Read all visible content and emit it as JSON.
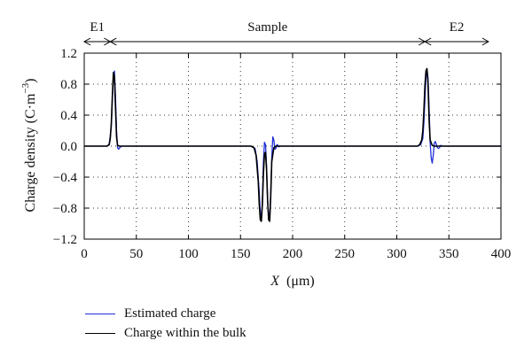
{
  "chart_data": {
    "type": "line",
    "xlabel_var": "X",
    "xlabel_unit": "(μm)",
    "ylabel_text": "Charge density (C·m",
    "ylabel_exp": "−3",
    "ylabel_close": ")",
    "xlim": [
      0,
      400
    ],
    "ylim": [
      -1.2,
      1.2
    ],
    "x_ticks": [
      0,
      50,
      100,
      150,
      200,
      250,
      300,
      350,
      400
    ],
    "x_tick_labels": [
      "0",
      "50",
      "100",
      "150",
      "200",
      "250",
      "300",
      "350",
      "400"
    ],
    "y_ticks": [
      1.2,
      0.8,
      0.4,
      0.0,
      -0.4,
      -0.8,
      -1.2
    ],
    "y_tick_labels": [
      "1.2",
      "0.8",
      "0.4",
      "0.0",
      "−0.4",
      "−0.8",
      "−1.2"
    ],
    "grid": true,
    "grid_style": "dotted",
    "regions": [
      {
        "label": "E1",
        "from": 0,
        "to": 25
      },
      {
        "label": "Sample",
        "from": 25,
        "to": 327
      },
      {
        "label": "E2",
        "from": 327,
        "to": 388
      }
    ],
    "series": [
      {
        "name": "Estimated charge",
        "color": "#1f2fd6",
        "x": [
          0,
          22,
          24,
          26,
          27,
          28,
          29,
          30,
          31,
          32,
          33,
          34,
          36,
          38,
          160,
          164,
          166,
          168,
          169,
          170,
          171,
          172,
          173,
          174,
          175,
          176,
          177,
          178,
          179,
          180,
          181,
          182,
          183,
          184,
          185,
          186,
          187,
          188,
          190,
          192,
          320,
          323,
          325,
          326,
          327,
          328,
          329,
          330,
          331,
          332,
          333,
          334,
          335,
          336,
          337,
          338,
          339,
          340,
          341,
          342,
          344,
          346,
          400
        ],
        "y": [
          0,
          0,
          0.03,
          0.25,
          0.6,
          0.92,
          0.97,
          0.65,
          0.2,
          -0.02,
          -0.04,
          -0.02,
          0,
          0,
          0,
          -0.03,
          -0.2,
          -0.6,
          -0.85,
          -0.95,
          -0.7,
          -0.2,
          0.05,
          0.02,
          -0.25,
          -0.7,
          -0.92,
          -0.92,
          -0.6,
          -0.15,
          0.12,
          0.08,
          -0.04,
          -0.03,
          0.02,
          0.01,
          -0.01,
          0,
          0,
          0,
          0,
          0.02,
          0.1,
          0.3,
          0.6,
          0.88,
          0.98,
          0.88,
          0.5,
          0.05,
          -0.15,
          -0.22,
          -0.12,
          0.04,
          0.06,
          0.02,
          -0.02,
          -0.03,
          -0.02,
          0.01,
          0,
          0,
          0
        ]
      },
      {
        "name": "Charge within the bulk",
        "color": "#000000",
        "x": [
          0,
          22,
          24,
          25,
          26,
          27,
          28,
          29,
          30,
          31,
          32,
          34,
          160,
          163,
          165,
          167,
          168,
          169,
          170,
          171,
          172,
          173,
          174,
          175,
          176,
          177,
          178,
          179,
          180,
          182,
          184,
          320,
          322,
          324,
          325,
          326,
          327,
          328,
          329,
          330,
          331,
          332,
          334,
          336,
          400
        ],
        "y": [
          0,
          0,
          0.02,
          0.1,
          0.3,
          0.65,
          0.95,
          0.9,
          0.5,
          0.12,
          0.01,
          0,
          0,
          -0.02,
          -0.12,
          -0.45,
          -0.75,
          -0.95,
          -0.97,
          -0.75,
          -0.35,
          -0.1,
          -0.08,
          -0.3,
          -0.7,
          -0.95,
          -0.97,
          -0.65,
          -0.2,
          -0.02,
          0,
          0,
          0.02,
          0.08,
          0.2,
          0.45,
          0.78,
          0.97,
          1.0,
          0.8,
          0.35,
          0.08,
          0.01,
          0,
          0
        ]
      }
    ]
  },
  "legend": {
    "items": [
      {
        "label": "Estimated charge",
        "color": "#1f2fd6"
      },
      {
        "label": "Charge within the bulk",
        "color": "#000000"
      }
    ]
  }
}
